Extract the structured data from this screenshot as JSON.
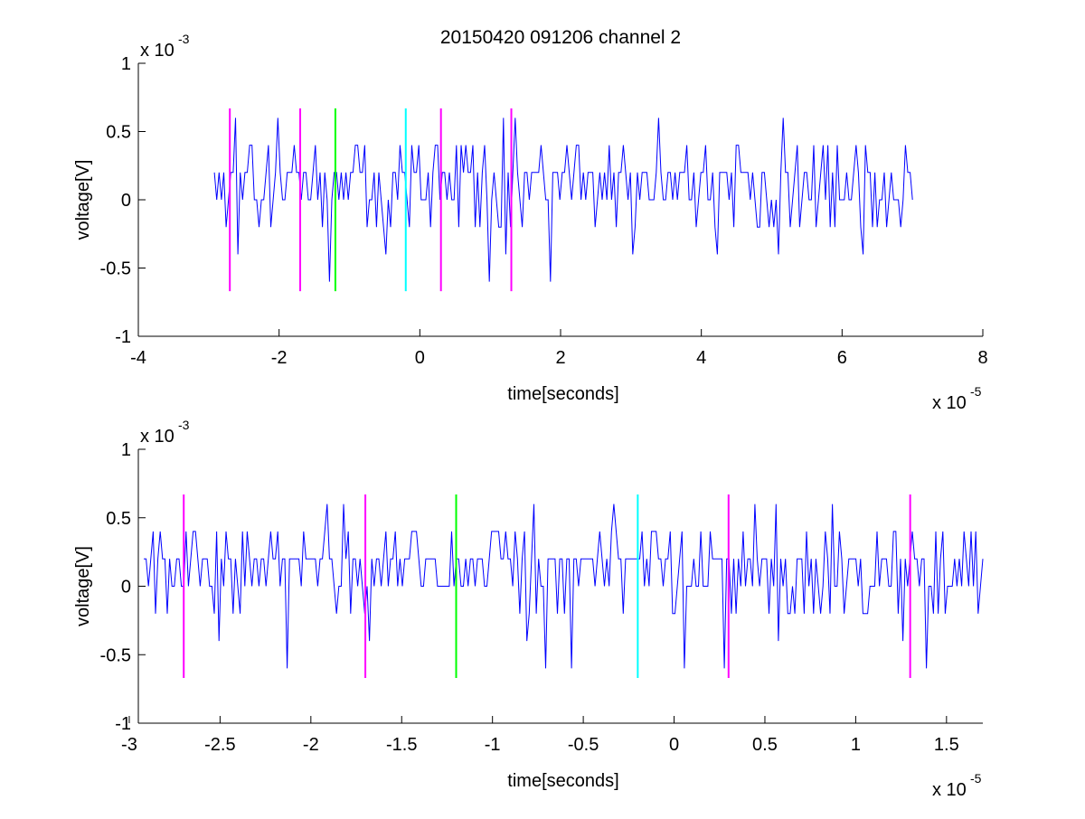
{
  "figure": {
    "title": "20150420 091206 channel 2"
  },
  "colors": {
    "trace": "#0000ff",
    "magenta": "#ff00ff",
    "green": "#00ff00",
    "cyan": "#00ffff"
  },
  "chart_data": [
    {
      "type": "line",
      "title": "20150420 091206 channel 2",
      "xlabel": "time[seconds]",
      "ylabel": "voltage[V]",
      "x_exponent_label": "x 10",
      "x_exponent": "-5",
      "y_exponent_label": "x 10",
      "y_exponent": "-3",
      "xlim": [
        -4,
        8
      ],
      "ylim": [
        -1,
        1
      ],
      "xticks": [
        -4,
        -2,
        0,
        2,
        4,
        6,
        8
      ],
      "xtick_labels": [
        "-4",
        "-2",
        "0",
        "2",
        "4",
        "6",
        "8"
      ],
      "yticks": [
        -1,
        -0.5,
        0,
        0.5,
        1
      ],
      "ytick_labels": [
        "-1",
        "-0.5",
        "0",
        "0.5",
        "1"
      ],
      "grid": false,
      "series": [
        {
          "color": "#0000ff",
          "x_range": [
            -2.92,
            7.0
          ],
          "levels": [
            -0.6,
            -0.4,
            -0.2,
            0,
            0.2,
            0.4,
            0.6
          ],
          "seed": 7
        }
      ],
      "markers": [
        {
          "x": -2.7,
          "ymin": -0.67,
          "ymax": 0.67,
          "color": "#ff00ff"
        },
        {
          "x": -1.7,
          "ymin": -0.67,
          "ymax": 0.67,
          "color": "#ff00ff"
        },
        {
          "x": -1.2,
          "ymin": -0.67,
          "ymax": 0.67,
          "color": "#00ff00"
        },
        {
          "x": -0.2,
          "ymin": -0.67,
          "ymax": 0.67,
          "color": "#00ffff"
        },
        {
          "x": 0.3,
          "ymin": -0.67,
          "ymax": 0.67,
          "color": "#ff00ff"
        },
        {
          "x": 1.3,
          "ymin": -0.67,
          "ymax": 0.67,
          "color": "#ff00ff"
        }
      ]
    },
    {
      "type": "line",
      "title": "",
      "xlabel": "time[seconds]",
      "ylabel": "voltage[V]",
      "x_exponent_label": "x 10",
      "x_exponent": "-5",
      "y_exponent_label": "x 10",
      "y_exponent": "-3",
      "xlim": [
        -2.95,
        1.7
      ],
      "ylim": [
        -1,
        1
      ],
      "xticks": [
        -3,
        -2.5,
        -2,
        -1.5,
        -1,
        -0.5,
        0,
        0.5,
        1,
        1.5
      ],
      "xtick_labels": [
        "-3",
        "-2.5",
        "-2",
        "-1.5",
        "-1",
        "-0.5",
        "0",
        "0.5",
        "1",
        "1.5"
      ],
      "yticks": [
        -1,
        -0.5,
        0,
        0.5,
        1
      ],
      "ytick_labels": [
        "-1",
        "-0.5",
        "0",
        "0.5",
        "1"
      ],
      "grid": false,
      "series": [
        {
          "color": "#0000ff",
          "x_range": [
            -2.92,
            1.7
          ],
          "levels": [
            -0.6,
            -0.4,
            -0.2,
            0,
            0.2,
            0.4,
            0.6
          ],
          "seed": 11
        }
      ],
      "markers": [
        {
          "x": -2.7,
          "ymin": -0.67,
          "ymax": 0.67,
          "color": "#ff00ff"
        },
        {
          "x": -1.7,
          "ymin": -0.67,
          "ymax": 0.67,
          "color": "#ff00ff"
        },
        {
          "x": -1.2,
          "ymin": -0.67,
          "ymax": 0.67,
          "color": "#00ff00"
        },
        {
          "x": -0.2,
          "ymin": -0.67,
          "ymax": 0.67,
          "color": "#00ffff"
        },
        {
          "x": 0.3,
          "ymin": -0.67,
          "ymax": 0.67,
          "color": "#ff00ff"
        },
        {
          "x": 1.3,
          "ymin": -0.67,
          "ymax": 0.67,
          "color": "#ff00ff"
        }
      ]
    }
  ]
}
